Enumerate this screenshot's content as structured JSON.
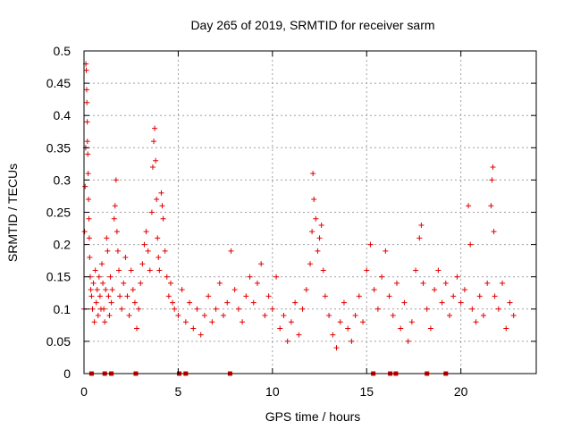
{
  "chart_data": {
    "type": "scatter",
    "title": "Day 265 of 2019, SRMTID for receiver sarm",
    "xlabel": "GPS time / hours",
    "ylabel": "SRMTID / TECUs",
    "xlim": [
      0,
      24
    ],
    "ylim": [
      0,
      0.5
    ],
    "xticks": [
      0,
      5,
      10,
      15,
      20
    ],
    "yticks": [
      0,
      0.05,
      0.1,
      0.15,
      0.2,
      0.25,
      0.3,
      0.35,
      0.4,
      0.45,
      0.5
    ],
    "xtick_labels": [
      "0",
      "5",
      "10",
      "15",
      "20"
    ],
    "ytick_labels": [
      "0",
      "0.05",
      "0.1",
      "0.15",
      "0.2",
      "0.25",
      "0.3",
      "0.35",
      "0.4",
      "0.45",
      "0.5"
    ],
    "grid": true,
    "marker": "plus",
    "color": "#e00000",
    "series": [
      {
        "name": "SRMTID",
        "points": [
          [
            0.0,
            0.1
          ],
          [
            0.03,
            0.22
          ],
          [
            0.06,
            0.29
          ],
          [
            0.09,
            0.35
          ],
          [
            0.1,
            0.48
          ],
          [
            0.12,
            0.47
          ],
          [
            0.14,
            0.44
          ],
          [
            0.15,
            0.42
          ],
          [
            0.17,
            0.39
          ],
          [
            0.18,
            0.36
          ],
          [
            0.2,
            0.34
          ],
          [
            0.22,
            0.31
          ],
          [
            0.24,
            0.27
          ],
          [
            0.26,
            0.24
          ],
          [
            0.28,
            0.21
          ],
          [
            0.3,
            0.18
          ],
          [
            0.33,
            0.15
          ],
          [
            0.36,
            0.13
          ],
          [
            0.4,
            0.12
          ],
          [
            0.45,
            0.1
          ],
          [
            0.5,
            0.14
          ],
          [
            0.55,
            0.08
          ],
          [
            0.6,
            0.16
          ],
          [
            0.65,
            0.11
          ],
          [
            0.7,
            0.13
          ],
          [
            0.75,
            0.09
          ],
          [
            0.8,
            0.15
          ],
          [
            0.85,
            0.12
          ],
          [
            0.9,
            0.1
          ],
          [
            0.95,
            0.17
          ],
          [
            1.0,
            0.14
          ],
          [
            1.05,
            0.1
          ],
          [
            1.1,
            0.08
          ],
          [
            1.15,
            0.13
          ],
          [
            1.2,
            0.21
          ],
          [
            1.25,
            0.19
          ],
          [
            1.3,
            0.12
          ],
          [
            1.35,
            0.09
          ],
          [
            1.4,
            0.15
          ],
          [
            1.45,
            0.11
          ],
          [
            1.5,
            0.13
          ],
          [
            1.6,
            0.24
          ],
          [
            1.65,
            0.26
          ],
          [
            1.7,
            0.3
          ],
          [
            1.75,
            0.22
          ],
          [
            1.8,
            0.19
          ],
          [
            1.85,
            0.16
          ],
          [
            1.9,
            0.12
          ],
          [
            2.0,
            0.1
          ],
          [
            2.1,
            0.14
          ],
          [
            2.2,
            0.18
          ],
          [
            2.3,
            0.12
          ],
          [
            2.4,
            0.09
          ],
          [
            2.5,
            0.16
          ],
          [
            2.6,
            0.13
          ],
          [
            2.7,
            0.11
          ],
          [
            2.8,
            0.07
          ],
          [
            2.9,
            0.1
          ],
          [
            3.0,
            0.14
          ],
          [
            3.1,
            0.17
          ],
          [
            3.2,
            0.2
          ],
          [
            3.3,
            0.22
          ],
          [
            3.4,
            0.19
          ],
          [
            3.5,
            0.16
          ],
          [
            3.6,
            0.25
          ],
          [
            3.65,
            0.32
          ],
          [
            3.7,
            0.36
          ],
          [
            3.75,
            0.38
          ],
          [
            3.8,
            0.33
          ],
          [
            3.85,
            0.27
          ],
          [
            3.9,
            0.21
          ],
          [
            3.95,
            0.18
          ],
          [
            4.0,
            0.16
          ],
          [
            4.1,
            0.28
          ],
          [
            4.15,
            0.26
          ],
          [
            4.2,
            0.24
          ],
          [
            4.3,
            0.19
          ],
          [
            4.4,
            0.15
          ],
          [
            4.5,
            0.12
          ],
          [
            4.6,
            0.14
          ],
          [
            4.7,
            0.11
          ],
          [
            4.8,
            0.1
          ],
          [
            5.0,
            0.09
          ],
          [
            5.2,
            0.13
          ],
          [
            5.4,
            0.08
          ],
          [
            5.6,
            0.11
          ],
          [
            5.8,
            0.07
          ],
          [
            6.0,
            0.1
          ],
          [
            6.2,
            0.06
          ],
          [
            6.4,
            0.09
          ],
          [
            6.6,
            0.12
          ],
          [
            6.8,
            0.08
          ],
          [
            7.0,
            0.1
          ],
          [
            7.2,
            0.14
          ],
          [
            7.4,
            0.09
          ],
          [
            7.6,
            0.11
          ],
          [
            7.8,
            0.19
          ],
          [
            8.0,
            0.13
          ],
          [
            8.2,
            0.1
          ],
          [
            8.4,
            0.08
          ],
          [
            8.6,
            0.12
          ],
          [
            8.8,
            0.15
          ],
          [
            9.0,
            0.11
          ],
          [
            9.2,
            0.14
          ],
          [
            9.4,
            0.17
          ],
          [
            9.6,
            0.09
          ],
          [
            9.8,
            0.12
          ],
          [
            10.0,
            0.1
          ],
          [
            10.2,
            0.15
          ],
          [
            10.4,
            0.07
          ],
          [
            10.6,
            0.09
          ],
          [
            10.8,
            0.05
          ],
          [
            11.0,
            0.08
          ],
          [
            11.2,
            0.11
          ],
          [
            11.4,
            0.06
          ],
          [
            11.6,
            0.1
          ],
          [
            11.8,
            0.13
          ],
          [
            12.0,
            0.17
          ],
          [
            12.1,
            0.22
          ],
          [
            12.15,
            0.31
          ],
          [
            12.2,
            0.27
          ],
          [
            12.3,
            0.24
          ],
          [
            12.4,
            0.19
          ],
          [
            12.5,
            0.21
          ],
          [
            12.6,
            0.23
          ],
          [
            12.7,
            0.16
          ],
          [
            12.8,
            0.12
          ],
          [
            13.0,
            0.09
          ],
          [
            13.2,
            0.06
          ],
          [
            13.4,
            0.04
          ],
          [
            13.6,
            0.08
          ],
          [
            13.8,
            0.11
          ],
          [
            14.0,
            0.07
          ],
          [
            14.2,
            0.05
          ],
          [
            14.4,
            0.09
          ],
          [
            14.6,
            0.12
          ],
          [
            14.8,
            0.08
          ],
          [
            15.0,
            0.16
          ],
          [
            15.2,
            0.2
          ],
          [
            15.4,
            0.13
          ],
          [
            15.6,
            0.1
          ],
          [
            15.8,
            0.15
          ],
          [
            16.0,
            0.19
          ],
          [
            16.2,
            0.12
          ],
          [
            16.4,
            0.09
          ],
          [
            16.6,
            0.14
          ],
          [
            16.8,
            0.07
          ],
          [
            17.0,
            0.11
          ],
          [
            17.2,
            0.05
          ],
          [
            17.4,
            0.08
          ],
          [
            17.6,
            0.16
          ],
          [
            17.8,
            0.21
          ],
          [
            17.9,
            0.23
          ],
          [
            18.0,
            0.14
          ],
          [
            18.2,
            0.1
          ],
          [
            18.4,
            0.07
          ],
          [
            18.6,
            0.13
          ],
          [
            18.8,
            0.16
          ],
          [
            19.0,
            0.11
          ],
          [
            19.2,
            0.14
          ],
          [
            19.4,
            0.09
          ],
          [
            19.6,
            0.12
          ],
          [
            19.8,
            0.15
          ],
          [
            20.0,
            0.11
          ],
          [
            20.2,
            0.13
          ],
          [
            20.4,
            0.26
          ],
          [
            20.5,
            0.2
          ],
          [
            20.6,
            0.1
          ],
          [
            20.8,
            0.08
          ],
          [
            21.0,
            0.12
          ],
          [
            21.2,
            0.09
          ],
          [
            21.4,
            0.14
          ],
          [
            21.6,
            0.26
          ],
          [
            21.65,
            0.3
          ],
          [
            21.7,
            0.32
          ],
          [
            21.75,
            0.22
          ],
          [
            21.8,
            0.12
          ],
          [
            22.0,
            0.1
          ],
          [
            22.2,
            0.14
          ],
          [
            22.4,
            0.07
          ],
          [
            22.6,
            0.11
          ],
          [
            22.8,
            0.09
          ]
        ]
      }
    ],
    "zero_markers_x": [
      0.4,
      1.1,
      1.45,
      2.75,
      5.05,
      5.4,
      7.75,
      15.35,
      16.25,
      16.55,
      18.2,
      19.2
    ]
  }
}
